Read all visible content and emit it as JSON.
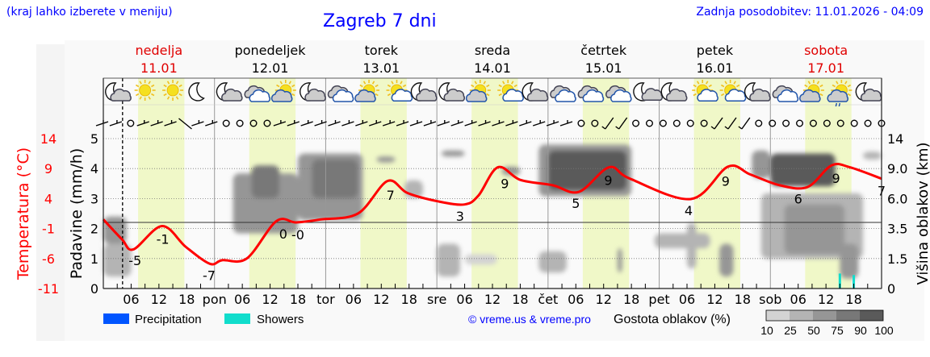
{
  "header": {
    "hint": "(kraj lahko izberete v meniju)",
    "title": "Zagreb 7 dni",
    "updated": "Zadnja posodobitev: 11.01.2026 - 04:09"
  },
  "days": [
    {
      "name": "nedelja",
      "date": "11.01",
      "weekend": true
    },
    {
      "name": "ponedeljek",
      "date": "12.01",
      "weekend": false
    },
    {
      "name": "torek",
      "date": "13.01",
      "weekend": false
    },
    {
      "name": "sreda",
      "date": "14.01",
      "weekend": false
    },
    {
      "name": "četrtek",
      "date": "15.01",
      "weekend": false
    },
    {
      "name": "petek",
      "date": "16.01",
      "weekend": false
    },
    {
      "name": "sobota",
      "date": "17.01",
      "weekend": true
    }
  ],
  "weather_icons": [
    "moon-cloud",
    "sun",
    "sun",
    "moon",
    "moon-cloud",
    "clouds",
    "sun-cloud",
    "moon-cloud",
    "clouds",
    "sun-cloud",
    "sun-small-cloud",
    "moon-cloud",
    "moon-cloud",
    "sun-cloud",
    "sun-small-cloud",
    "moon-cloud",
    "clouds",
    "clouds",
    "clouds",
    "moon-small-cloud",
    "moon-cloud",
    "sun-small-cloud",
    "sun-small-cloud",
    "moon-cloud",
    "clouds",
    "sun-cloud",
    "sun-cloud-drizzle",
    "moon-cloud"
  ],
  "wind_symbols": "bbobbbBbboooobbbbbbbbbbbbbbbbbbbbbbooLLooooooLLLoooooooooo",
  "legend": {
    "precipitation": "Precipitation",
    "showers": "Showers",
    "copyright": "© vreme.us & vreme.pro",
    "density_title": "Gostota oblakov (%)",
    "density_levels": [
      "10",
      "25",
      "50",
      "75",
      "90",
      "100"
    ]
  },
  "colors": {
    "temperature": "#ff0000",
    "precipitation": "#0055ff",
    "showers": "#11ddcc",
    "daylight": "#f0f8c8",
    "density": [
      "#d3d3d3",
      "#b4b4b4",
      "#969696",
      "#787878",
      "#5a5a5a"
    ],
    "text_blue": "#0000ff"
  },
  "chart_data": {
    "type": "line",
    "start": "2026-01-11T00:00",
    "end": "2026-01-18T00:00",
    "now": "2026-01-11T04:09",
    "x_tick_labels": [
      "06",
      "12",
      "18",
      "pon",
      "06",
      "12",
      "18",
      "tor",
      "06",
      "12",
      "18",
      "sre",
      "06",
      "12",
      "18",
      "čet",
      "06",
      "12",
      "18",
      "pet",
      "06",
      "12",
      "18",
      "sob",
      "06",
      "12",
      "18"
    ],
    "y_left_temperature": {
      "label": "Temperatura (°C)",
      "ticks": [
        "14",
        "9",
        "4",
        "-1",
        "-6",
        "-11"
      ],
      "range": [
        -11,
        14
      ]
    },
    "y_left_precip": {
      "label": "Padavine (mm/h)",
      "ticks": [
        "5",
        "4",
        "3",
        "2",
        "1",
        "0"
      ],
      "range": [
        0,
        5
      ]
    },
    "y_right_cloud": {
      "label": "Višina oblakov (km)",
      "ticks": [
        "14",
        "9.0",
        "6.0",
        "3.5",
        "1.5",
        "0"
      ]
    },
    "grid": true,
    "temperature": [
      [
        "2026-01-11T00:00",
        0.5
      ],
      [
        "2026-01-11T04:00",
        -2.8
      ],
      [
        "2026-01-11T06:30",
        -4.5
      ],
      [
        "2026-01-11T12:40",
        -0.6
      ],
      [
        "2026-01-11T17:50",
        -4.1
      ],
      [
        "2026-01-11T23:00",
        -6.9
      ],
      [
        "2026-01-12T01:40",
        -6.3
      ],
      [
        "2026-01-12T07:00",
        -6.0
      ],
      [
        "2026-01-12T13:20",
        0.2
      ],
      [
        "2026-01-12T17:40",
        0.0
      ],
      [
        "2026-01-12T23:00",
        0.5
      ],
      [
        "2026-01-13T07:00",
        1.5
      ],
      [
        "2026-01-13T13:20",
        6.9
      ],
      [
        "2026-01-13T17:40",
        4.9
      ],
      [
        "2026-01-14T00:20",
        3.5
      ],
      [
        "2026-01-14T06:00",
        3.0
      ],
      [
        "2026-01-14T09:00",
        4.5
      ],
      [
        "2026-01-14T13:10",
        9.2
      ],
      [
        "2026-01-14T18:00",
        7.1
      ],
      [
        "2026-01-15T01:00",
        6.2
      ],
      [
        "2026-01-15T06:40",
        5.1
      ],
      [
        "2026-01-15T13:10",
        9.2
      ],
      [
        "2026-01-15T17:40",
        7.3
      ],
      [
        "2026-01-16T06:50",
        3.9
      ],
      [
        "2026-01-16T14:50",
        9.3
      ],
      [
        "2026-01-16T19:40",
        8.0
      ],
      [
        "2026-01-17T02:00",
        6.2
      ],
      [
        "2026-01-17T08:00",
        5.9
      ],
      [
        "2026-01-17T13:10",
        9.5
      ],
      [
        "2026-01-17T17:10",
        9.2
      ],
      [
        "2026-01-18T00:00",
        7.3
      ]
    ],
    "temperature_labels": [
      {
        "t": "2026-01-11T06:50",
        "text": "-5",
        "pos": "below"
      },
      {
        "t": "2026-01-11T12:50",
        "text": "-1",
        "pos": "below"
      },
      {
        "t": "2026-01-11T22:50",
        "text": "-7",
        "pos": "below"
      },
      {
        "t": "2026-01-12T14:50",
        "text": "0",
        "pos": "below"
      },
      {
        "t": "2026-01-12T18:00",
        "text": "-0",
        "pos": "below"
      },
      {
        "t": "2026-01-13T14:00",
        "text": "7",
        "pos": "below"
      },
      {
        "t": "2026-01-14T05:00",
        "text": "3",
        "pos": "below"
      },
      {
        "t": "2026-01-14T14:40",
        "text": "9",
        "pos": "below"
      },
      {
        "t": "2026-01-15T06:00",
        "text": "5",
        "pos": "below"
      },
      {
        "t": "2026-01-15T13:00",
        "text": "9",
        "pos": "below"
      },
      {
        "t": "2026-01-16T06:20",
        "text": "4",
        "pos": "below"
      },
      {
        "t": "2026-01-16T14:20",
        "text": "9",
        "pos": "below"
      },
      {
        "t": "2026-01-17T06:00",
        "text": "6",
        "pos": "below"
      },
      {
        "t": "2026-01-17T14:10",
        "text": "9",
        "pos": "below"
      },
      {
        "t": "2026-01-18T00:00",
        "text": "7",
        "pos": "below"
      }
    ],
    "cloud_patches": [
      {
        "from": "2026-01-11T00:00",
        "to": "2026-01-11T05:00",
        "km": [
          2.5,
          4.5
        ],
        "density": 50
      },
      {
        "from": "2026-01-11T00:00",
        "to": "2026-01-11T06:00",
        "km": [
          0.6,
          2.5
        ],
        "density": 25
      },
      {
        "from": "2026-01-12T04:00",
        "to": "2026-01-12T18:00",
        "km": [
          3.2,
          8.5
        ],
        "density": 50
      },
      {
        "from": "2026-01-12T08:00",
        "to": "2026-01-12T14:00",
        "km": [
          6.0,
          9.5
        ],
        "density": 75
      },
      {
        "from": "2026-01-12T18:00",
        "to": "2026-01-13T08:00",
        "km": [
          4.2,
          11.5
        ],
        "density": 50
      },
      {
        "from": "2026-01-12T21:00",
        "to": "2026-01-13T07:00",
        "km": [
          6.0,
          10.5
        ],
        "density": 75
      },
      {
        "from": "2026-01-13T11:00",
        "to": "2026-01-13T15:00",
        "km": [
          10.0,
          11.0
        ],
        "density": 50
      },
      {
        "from": "2026-01-13T17:00",
        "to": "2026-01-13T21:00",
        "km": [
          6.0,
          7.8
        ],
        "density": 25
      },
      {
        "from": "2026-01-14T01:00",
        "to": "2026-01-14T06:00",
        "km": [
          11.0,
          12.0
        ],
        "density": 50
      },
      {
        "from": "2026-01-14T00:00",
        "to": "2026-01-14T05:00",
        "km": [
          0.6,
          2.5
        ],
        "density": 25
      },
      {
        "from": "2026-01-14T06:00",
        "to": "2026-01-14T13:00",
        "km": [
          1.2,
          1.8
        ],
        "density": 10
      },
      {
        "from": "2026-01-14T14:00",
        "to": "2026-01-14T18:00",
        "km": [
          8.3,
          9.3
        ],
        "density": 50
      },
      {
        "from": "2026-01-14T22:00",
        "to": "2026-01-15T04:00",
        "km": [
          0.8,
          2.0
        ],
        "density": 25
      },
      {
        "from": "2026-01-14T22:00",
        "to": "2026-01-15T18:00",
        "km": [
          6.2,
          13.0
        ],
        "density": 50
      },
      {
        "from": "2026-01-15T00:00",
        "to": "2026-01-15T17:00",
        "km": [
          6.8,
          12.0
        ],
        "density": 90
      },
      {
        "from": "2026-01-15T15:00",
        "to": "2026-01-15T16:00",
        "km": [
          0.8,
          2.2
        ],
        "density": 50
      },
      {
        "from": "2026-01-15T23:00",
        "to": "2026-01-16T11:00",
        "km": [
          2.2,
          3.2
        ],
        "density": 25
      },
      {
        "from": "2026-01-16T06:00",
        "to": "2026-01-16T08:00",
        "km": [
          1.0,
          4.0
        ],
        "density": 25
      },
      {
        "from": "2026-01-16T13:00",
        "to": "2026-01-16T16:00",
        "km": [
          0.6,
          2.5
        ],
        "density": 50
      },
      {
        "from": "2026-01-16T20:00",
        "to": "2026-01-17T00:00",
        "km": [
          8.0,
          12.0
        ],
        "density": 50
      },
      {
        "from": "2026-01-16T22:00",
        "to": "2026-01-17T20:00",
        "km": [
          1.5,
          6.5
        ],
        "density": 25
      },
      {
        "from": "2026-01-17T03:00",
        "to": "2026-01-17T16:00",
        "km": [
          1.8,
          5.5
        ],
        "density": 50
      },
      {
        "from": "2026-01-17T00:00",
        "to": "2026-01-17T14:00",
        "km": [
          7.2,
          11.5
        ],
        "density": 90
      },
      {
        "from": "2026-01-17T15:00",
        "to": "2026-01-17T19:00",
        "km": [
          0.5,
          2.5
        ],
        "density": 50
      },
      {
        "from": "2026-01-17T20:00",
        "to": "2026-01-18T00:00",
        "km": [
          10.5,
          11.8
        ],
        "density": 25
      }
    ],
    "showers": [
      [
        "2026-01-17T15:00",
        0.5
      ],
      [
        "2026-01-17T18:00",
        0.45
      ]
    ],
    "precipitation": []
  }
}
